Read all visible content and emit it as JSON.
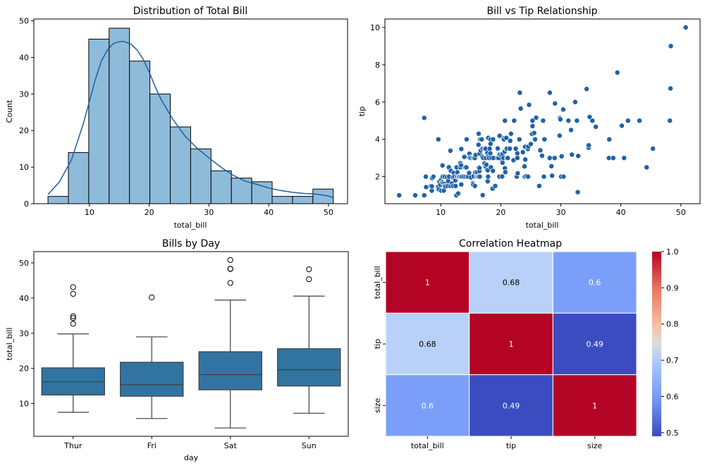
{
  "figure": {
    "background": "#ffffff"
  },
  "chart_data": [
    {
      "id": "hist",
      "type": "bar",
      "subtype": "histogram-with-kde",
      "title": "Distribution of Total Bill",
      "xlabel": "total_bill",
      "ylabel": "Count",
      "xlim": [
        0.7,
        53.2
      ],
      "ylim": [
        0,
        50.5
      ],
      "xticks": [
        10,
        20,
        30,
        40,
        50
      ],
      "yticks": [
        0,
        10,
        20,
        30,
        40,
        50
      ],
      "bin_edges": [
        3.07,
        6.48,
        9.89,
        13.3,
        16.71,
        20.12,
        23.53,
        26.94,
        30.35,
        33.76,
        37.17,
        40.58,
        43.99,
        47.4,
        50.81
      ],
      "values": [
        2,
        14,
        45,
        48,
        39,
        30,
        21,
        15,
        9,
        7,
        6,
        2,
        2,
        4
      ],
      "bar_color": "#8fbbda",
      "edge_color": "#000000",
      "kde": {
        "color": "#1f5fa0",
        "x": [
          3.07,
          5,
          7,
          9,
          10,
          11,
          12,
          13,
          14,
          15,
          15.7,
          17,
          18,
          19,
          20,
          21,
          22,
          24,
          26,
          28,
          30,
          32,
          34,
          36,
          38,
          40,
          42,
          44,
          46,
          48,
          50,
          50.81
        ],
        "y": [
          2.5,
          6,
          12,
          22,
          28,
          34,
          39,
          42,
          43.8,
          44.3,
          44.4,
          43.6,
          42,
          39.5,
          36,
          32,
          28.5,
          23,
          18.5,
          15.2,
          12.5,
          10,
          7.8,
          6.2,
          5.3,
          4.3,
          3.6,
          3.1,
          2.8,
          2.6,
          2.1,
          1.7
        ]
      }
    },
    {
      "id": "scatter",
      "type": "scatter",
      "title": "Bill vs Tip Relationship",
      "xlabel": "total_bill",
      "ylabel": "tip",
      "xlim": [
        0.7,
        53.2
      ],
      "ylim": [
        0.55,
        10.45
      ],
      "xticks": [
        10,
        20,
        30,
        40,
        50
      ],
      "yticks": [
        2,
        4,
        6,
        8,
        10
      ],
      "point_color": "#1f62a8",
      "points": [
        [
          3.07,
          1.0
        ],
        [
          5.75,
          1.0
        ],
        [
          7.25,
          1.0
        ],
        [
          7.25,
          5.15
        ],
        [
          7.51,
          2.0
        ],
        [
          7.56,
          1.44
        ],
        [
          8.35,
          1.5
        ],
        [
          8.51,
          1.25
        ],
        [
          8.52,
          1.48
        ],
        [
          8.58,
          1.92
        ],
        [
          8.77,
          2.0
        ],
        [
          9.55,
          1.45
        ],
        [
          9.6,
          4.0
        ],
        [
          9.68,
          1.32
        ],
        [
          9.78,
          1.73
        ],
        [
          9.94,
          1.56
        ],
        [
          10.07,
          1.83
        ],
        [
          10.07,
          1.25
        ],
        [
          10.27,
          1.71
        ],
        [
          10.29,
          2.6
        ],
        [
          10.33,
          2.0
        ],
        [
          10.34,
          1.66
        ],
        [
          10.51,
          1.25
        ],
        [
          10.59,
          1.61
        ],
        [
          10.63,
          2.0
        ],
        [
          10.65,
          1.5
        ],
        [
          10.77,
          1.47
        ],
        [
          11.02,
          1.98
        ],
        [
          11.17,
          1.5
        ],
        [
          11.24,
          1.76
        ],
        [
          11.35,
          2.5
        ],
        [
          11.38,
          2.0
        ],
        [
          11.59,
          1.5
        ],
        [
          11.61,
          3.39
        ],
        [
          11.69,
          2.31
        ],
        [
          11.87,
          1.63
        ],
        [
          12.02,
          1.97
        ],
        [
          12.03,
          1.5
        ],
        [
          12.16,
          2.2
        ],
        [
          12.26,
          2.0
        ],
        [
          12.43,
          1.8
        ],
        [
          12.46,
          1.5
        ],
        [
          12.48,
          2.52
        ],
        [
          12.54,
          2.5
        ],
        [
          12.6,
          1.0
        ],
        [
          12.66,
          2.5
        ],
        [
          12.69,
          2.0
        ],
        [
          12.74,
          2.01
        ],
        [
          12.76,
          2.23
        ],
        [
          12.9,
          1.1
        ],
        [
          13.0,
          2.0
        ],
        [
          13.03,
          2.0
        ],
        [
          13.13,
          2.0
        ],
        [
          13.27,
          2.5
        ],
        [
          13.28,
          2.72
        ],
        [
          13.37,
          2.0
        ],
        [
          13.39,
          2.61
        ],
        [
          13.42,
          1.58
        ],
        [
          13.42,
          3.48
        ],
        [
          13.51,
          2.0
        ],
        [
          13.81,
          2.0
        ],
        [
          13.94,
          3.06
        ],
        [
          14.07,
          2.5
        ],
        [
          14.15,
          2.0
        ],
        [
          14.26,
          2.5
        ],
        [
          14.31,
          4.0
        ],
        [
          14.48,
          2.0
        ],
        [
          14.52,
          2.0
        ],
        [
          14.73,
          2.2
        ],
        [
          14.78,
          3.23
        ],
        [
          14.83,
          3.02
        ],
        [
          15.04,
          1.96
        ],
        [
          15.06,
          3.0
        ],
        [
          15.36,
          1.64
        ],
        [
          15.38,
          3.0
        ],
        [
          15.42,
          1.57
        ],
        [
          15.48,
          2.02
        ],
        [
          15.53,
          3.0
        ],
        [
          15.69,
          1.5
        ],
        [
          15.69,
          3.0
        ],
        [
          15.77,
          2.23
        ],
        [
          15.81,
          3.16
        ],
        [
          15.98,
          2.03
        ],
        [
          16.0,
          2.0
        ],
        [
          16.04,
          2.24
        ],
        [
          16.21,
          2.0
        ],
        [
          16.27,
          2.5
        ],
        [
          16.29,
          3.71
        ],
        [
          16.31,
          2.0
        ],
        [
          16.32,
          4.3
        ],
        [
          16.4,
          2.5
        ],
        [
          16.43,
          2.3
        ],
        [
          16.45,
          2.47
        ],
        [
          16.47,
          3.23
        ],
        [
          16.49,
          2.0
        ],
        [
          16.58,
          4.0
        ],
        [
          16.66,
          3.4
        ],
        [
          16.82,
          4.0
        ],
        [
          16.93,
          3.07
        ],
        [
          16.97,
          3.5
        ],
        [
          16.99,
          1.01
        ],
        [
          17.07,
          3.0
        ],
        [
          17.26,
          2.74
        ],
        [
          17.29,
          2.71
        ],
        [
          17.31,
          3.5
        ],
        [
          17.46,
          2.54
        ],
        [
          17.47,
          3.5
        ],
        [
          17.51,
          3.0
        ],
        [
          17.59,
          2.64
        ],
        [
          17.78,
          3.27
        ],
        [
          17.81,
          2.34
        ],
        [
          17.82,
          1.75
        ],
        [
          17.89,
          2.0
        ],
        [
          17.92,
          3.08
        ],
        [
          17.92,
          4.08
        ],
        [
          18.04,
          3.0
        ],
        [
          18.15,
          3.5
        ],
        [
          18.24,
          3.76
        ],
        [
          18.26,
          3.25
        ],
        [
          18.28,
          4.0
        ],
        [
          18.29,
          3.76
        ],
        [
          18.35,
          2.5
        ],
        [
          18.43,
          3.0
        ],
        [
          18.64,
          1.36
        ],
        [
          18.69,
          2.31
        ],
        [
          18.71,
          4.0
        ],
        [
          18.78,
          3.0
        ],
        [
          19.08,
          1.5
        ],
        [
          19.44,
          3.0
        ],
        [
          19.49,
          3.51
        ],
        [
          19.65,
          3.0
        ],
        [
          19.77,
          2.0
        ],
        [
          19.81,
          4.19
        ],
        [
          19.82,
          3.18
        ],
        [
          20.08,
          3.15
        ],
        [
          20.23,
          2.01
        ],
        [
          20.27,
          2.83
        ],
        [
          20.29,
          2.75
        ],
        [
          20.29,
          3.21
        ],
        [
          20.45,
          3.0
        ],
        [
          20.49,
          4.06
        ],
        [
          20.53,
          4.0
        ],
        [
          20.65,
          3.35
        ],
        [
          20.69,
          2.45
        ],
        [
          20.69,
          5.0
        ],
        [
          20.76,
          2.24
        ],
        [
          20.9,
          3.5
        ],
        [
          20.92,
          4.08
        ],
        [
          21.01,
          3.0
        ],
        [
          21.01,
          3.5
        ],
        [
          21.16,
          3.0
        ],
        [
          21.5,
          3.5
        ],
        [
          21.58,
          3.92
        ],
        [
          21.7,
          4.3
        ],
        [
          22.12,
          2.88
        ],
        [
          22.23,
          5.0
        ],
        [
          22.42,
          3.48
        ],
        [
          22.49,
          3.5
        ],
        [
          22.67,
          2.0
        ],
        [
          22.75,
          3.25
        ],
        [
          22.76,
          3.0
        ],
        [
          22.82,
          2.18
        ],
        [
          23.1,
          4.0
        ],
        [
          23.17,
          6.5
        ],
        [
          23.33,
          5.65
        ],
        [
          23.68,
          3.31
        ],
        [
          23.95,
          2.55
        ],
        [
          24.01,
          2.0
        ],
        [
          24.06,
          3.6
        ],
        [
          24.08,
          2.92
        ],
        [
          24.27,
          2.03
        ],
        [
          24.52,
          3.48
        ],
        [
          24.55,
          2.0
        ],
        [
          24.59,
          3.61
        ],
        [
          24.71,
          5.85
        ],
        [
          25.0,
          3.75
        ],
        [
          25.21,
          4.29
        ],
        [
          25.28,
          5.0
        ],
        [
          25.29,
          4.71
        ],
        [
          25.56,
          4.34
        ],
        [
          25.71,
          4.0
        ],
        [
          25.89,
          5.16
        ],
        [
          26.41,
          1.5
        ],
        [
          26.59,
          3.41
        ],
        [
          26.86,
          3.14
        ],
        [
          26.88,
          3.12
        ],
        [
          27.05,
          5.0
        ],
        [
          27.18,
          2.0
        ],
        [
          27.2,
          4.0
        ],
        [
          27.28,
          4.0
        ],
        [
          28.15,
          3.0
        ],
        [
          28.17,
          6.5
        ],
        [
          28.44,
          2.56
        ],
        [
          28.55,
          2.05
        ],
        [
          28.97,
          3.0
        ],
        [
          29.03,
          5.92
        ],
        [
          29.8,
          4.2
        ],
        [
          29.85,
          5.14
        ],
        [
          29.93,
          5.07
        ],
        [
          30.06,
          2.0
        ],
        [
          30.14,
          3.09
        ],
        [
          30.4,
          5.6
        ],
        [
          30.46,
          2.0
        ],
        [
          31.27,
          5.0
        ],
        [
          31.71,
          4.5
        ],
        [
          31.85,
          3.18
        ],
        [
          32.4,
          6.0
        ],
        [
          32.68,
          5.0
        ],
        [
          32.83,
          1.17
        ],
        [
          32.9,
          3.11
        ],
        [
          34.3,
          6.7
        ],
        [
          34.63,
          3.55
        ],
        [
          34.65,
          3.68
        ],
        [
          34.81,
          5.2
        ],
        [
          35.26,
          5.0
        ],
        [
          35.83,
          4.67
        ],
        [
          38.01,
          3.0
        ],
        [
          38.07,
          4.0
        ],
        [
          38.73,
          3.0
        ],
        [
          39.42,
          7.58
        ],
        [
          40.17,
          4.73
        ],
        [
          40.55,
          3.0
        ],
        [
          41.19,
          5.0
        ],
        [
          43.11,
          5.0
        ],
        [
          44.3,
          2.5
        ],
        [
          45.35,
          3.5
        ],
        [
          48.17,
          5.0
        ],
        [
          48.27,
          6.73
        ],
        [
          48.33,
          9.0
        ],
        [
          50.81,
          10.0
        ]
      ]
    },
    {
      "id": "box",
      "type": "box",
      "title": "Bills by Day",
      "xlabel": "day",
      "ylabel": "total_bill",
      "ylim": [
        0.7,
        53.2
      ],
      "yticks": [
        10,
        20,
        30,
        40,
        50
      ],
      "categories": [
        "Thur",
        "Fri",
        "Sat",
        "Sun"
      ],
      "box_color": "#3274a1",
      "edge_color": "#3f3f3f",
      "boxes": [
        {
          "whislo": 7.51,
          "q1": 12.44,
          "med": 16.2,
          "q3": 20.16,
          "whishi": 29.8,
          "fliers": [
            32.68,
            34.3,
            34.83,
            41.19,
            43.11
          ]
        },
        {
          "whislo": 5.75,
          "q1": 12.09,
          "med": 15.38,
          "q3": 21.75,
          "whishi": 28.97,
          "fliers": [
            40.17
          ]
        },
        {
          "whislo": 3.07,
          "q1": 13.91,
          "med": 18.24,
          "q3": 24.74,
          "whishi": 39.42,
          "fliers": [
            44.3,
            48.27,
            48.33,
            50.81
          ]
        },
        {
          "whislo": 7.25,
          "q1": 14.99,
          "med": 19.63,
          "q3": 25.6,
          "whishi": 40.55,
          "fliers": [
            45.35,
            48.17
          ]
        }
      ]
    },
    {
      "id": "heatmap",
      "type": "heatmap",
      "title": "Correlation Heatmap",
      "xlabels": [
        "total_bill",
        "tip",
        "size"
      ],
      "ylabels": [
        "total_bill",
        "tip",
        "size"
      ],
      "values": [
        [
          1.0,
          0.68,
          0.6
        ],
        [
          0.68,
          1.0,
          0.49
        ],
        [
          0.6,
          0.49,
          1.0
        ]
      ],
      "annotations": [
        [
          "1",
          "0.68",
          "0.6"
        ],
        [
          "0.68",
          "1",
          "0.49"
        ],
        [
          "0.6",
          "0.49",
          "1"
        ]
      ],
      "colormap": "coolwarm",
      "vmin": 0.49,
      "vmax": 1.0,
      "colorbar_ticks": [
        "0.5",
        "0.6",
        "0.7",
        "0.8",
        "0.9",
        "1.0"
      ],
      "colorbar_tick_values": [
        0.5,
        0.6,
        0.7,
        0.8,
        0.9,
        1.0
      ],
      "cell_colors": [
        [
          "#b40426",
          "#b9d0f9",
          "#7b9ff9"
        ],
        [
          "#b9d0f9",
          "#b40426",
          "#3b4cc0"
        ],
        [
          "#7b9ff9",
          "#3b4cc0",
          "#b40426"
        ]
      ],
      "annotation_colors": [
        [
          "#ffffff",
          "#000000",
          "#ffffff"
        ],
        [
          "#000000",
          "#ffffff",
          "#ffffff"
        ],
        [
          "#ffffff",
          "#ffffff",
          "#ffffff"
        ]
      ]
    }
  ]
}
